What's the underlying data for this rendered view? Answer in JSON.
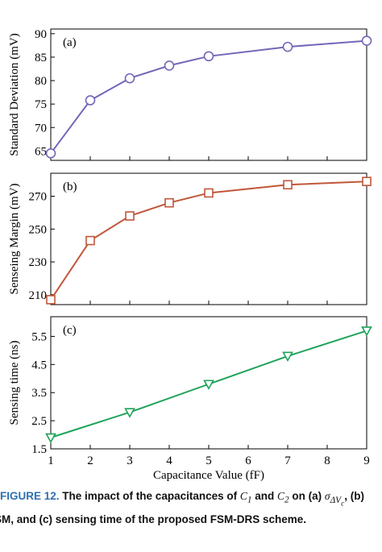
{
  "chart_data": [
    {
      "type": "line",
      "panel_label": "(a)",
      "ylabel": "Standard Deviation (mV)",
      "x": [
        1,
        2,
        3,
        4,
        5,
        7,
        9
      ],
      "values": [
        64.5,
        75.8,
        80.5,
        83.2,
        85.2,
        87.2,
        88.5
      ],
      "yticks": [
        65,
        70,
        75,
        80,
        85,
        90
      ],
      "ylim": [
        63,
        91
      ],
      "marker": "circle",
      "color": "#7466b8"
    },
    {
      "type": "line",
      "panel_label": "(b)",
      "ylabel": "Senseing Margin (mV)",
      "x": [
        1,
        2,
        3,
        4,
        5,
        7,
        9
      ],
      "values": [
        207,
        243,
        258,
        266,
        272,
        277,
        279
      ],
      "yticks": [
        210,
        230,
        250,
        270
      ],
      "ylim": [
        204,
        284
      ],
      "marker": "square",
      "color": "#c0573a"
    },
    {
      "type": "line",
      "panel_label": "(c)",
      "ylabel": "Sensing time (ns)",
      "x": [
        1,
        2,
        3,
        4,
        5,
        7,
        9
      ],
      "values": [
        1.9,
        null,
        2.8,
        null,
        3.8,
        4.8,
        5.7
      ],
      "yticks": [
        1.5,
        2.5,
        3.5,
        4.5,
        5.5
      ],
      "ylim": [
        1.5,
        6.2
      ],
      "marker": "triangle-down",
      "color": "#1fa35a"
    }
  ],
  "x_axis": {
    "label": "Capacitance Value (fF)",
    "ticks": [
      1,
      2,
      3,
      4,
      5,
      6,
      7,
      8,
      9
    ],
    "xlim": [
      1,
      9
    ]
  },
  "caption": {
    "figure_label": "FIGURE 12.",
    "text_1": "The impact of the capacitances of ",
    "c1": "C",
    "c1_sub": "1",
    "text_and": " and ",
    "c2": "C",
    "c2_sub": "2",
    "text_2": " on (a) ",
    "sigma": "σ",
    "sigma_sub": "ΔV",
    "sigma_subsub": "c",
    "text_3": ", (b)",
    "line_2": "SM, and (c) sensing time of the proposed FSM-DRS scheme."
  }
}
